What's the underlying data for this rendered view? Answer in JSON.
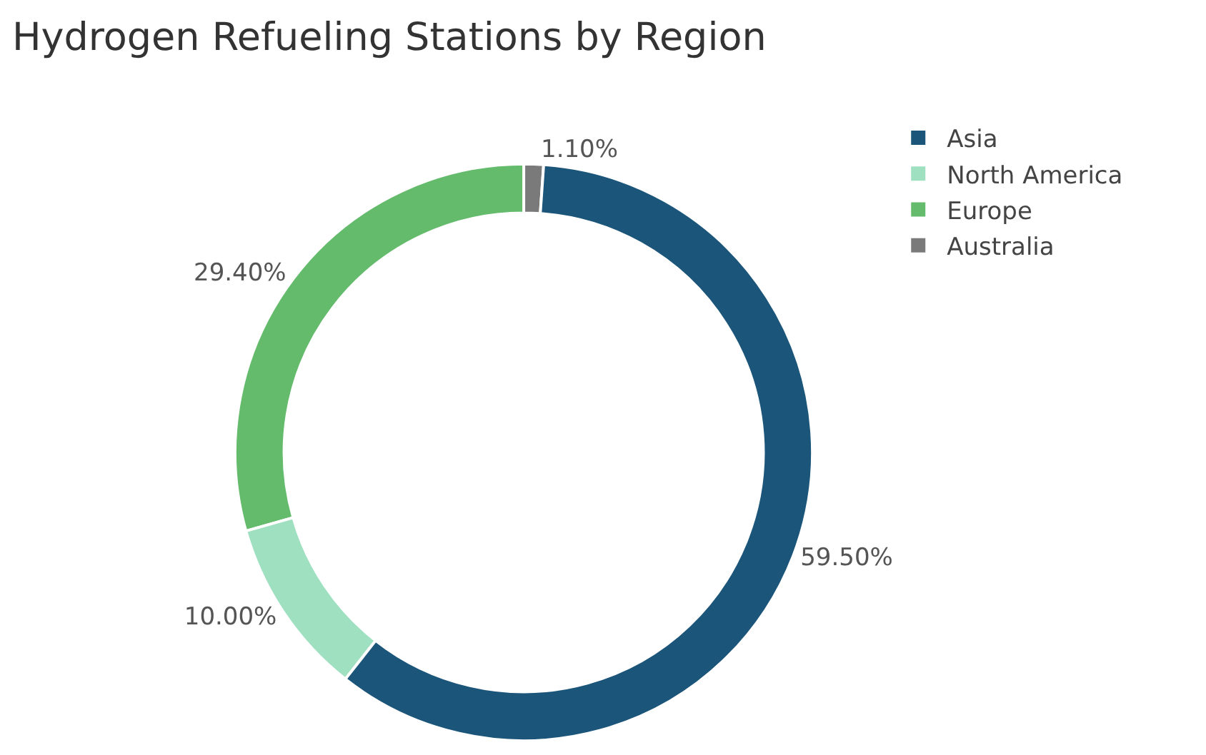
{
  "chart_data": {
    "type": "donut",
    "title": "Hydrogen Refueling Stations by Region",
    "categories": [
      "Asia",
      "North America",
      "Europe",
      "Australia"
    ],
    "values": [
      59.5,
      10.0,
      29.4,
      1.1
    ],
    "value_labels": [
      "59.50%",
      "10.00%",
      "29.40%",
      "1.10%"
    ],
    "colors": [
      "#1b557a",
      "#9fe0c0",
      "#64bb6c",
      "#7a7a7a"
    ],
    "legend": "top right"
  }
}
